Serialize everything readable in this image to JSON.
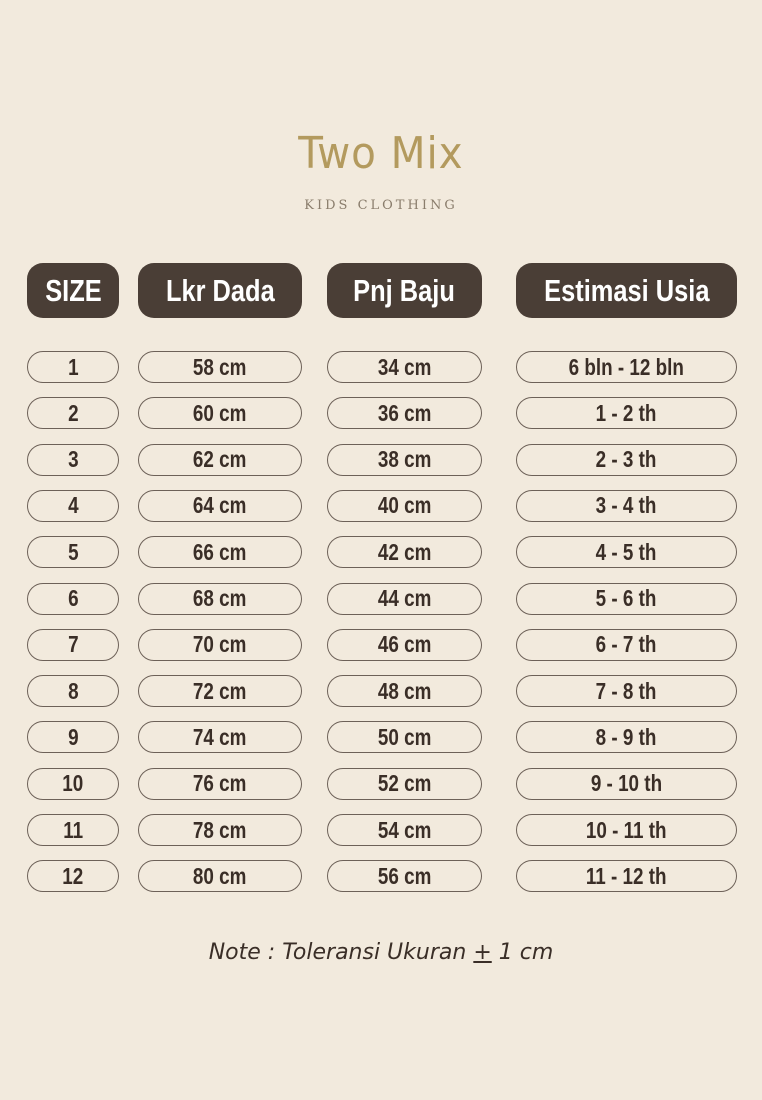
{
  "logo": {
    "brand": "Two Mix",
    "tagline": "KIDS CLOTHING"
  },
  "headers": [
    "SIZE",
    "Lkr Dada",
    "Pnj Baju",
    "Estimasi Usia"
  ],
  "rows": [
    [
      "1",
      "58 cm",
      "34 cm",
      "6 bln - 12 bln"
    ],
    [
      "2",
      "60 cm",
      "36 cm",
      "1 - 2 th"
    ],
    [
      "3",
      "62 cm",
      "38 cm",
      "2 - 3 th"
    ],
    [
      "4",
      "64 cm",
      "40 cm",
      "3 - 4 th"
    ],
    [
      "5",
      "66 cm",
      "42 cm",
      "4 - 5 th"
    ],
    [
      "6",
      "68 cm",
      "44 cm",
      "5 - 6 th"
    ],
    [
      "7",
      "70 cm",
      "46 cm",
      "6 - 7 th"
    ],
    [
      "8",
      "72 cm",
      "48 cm",
      "7 - 8 th"
    ],
    [
      "9",
      "74 cm",
      "50 cm",
      "8 - 9 th"
    ],
    [
      "10",
      "76 cm",
      "52 cm",
      "9 - 10 th"
    ],
    [
      "11",
      "78 cm",
      "54 cm",
      "10 - 11 th"
    ],
    [
      "12",
      "80 cm",
      "56 cm",
      "11 - 12 th"
    ]
  ],
  "note": {
    "prefix": "Note : Toleransi Ukuran ",
    "symbol": "+",
    "suffix": " 1 cm"
  },
  "colors": {
    "background": "#f2eadd",
    "header": "#4a3e36",
    "logo": "#b39a5e",
    "text": "#3a2e27"
  }
}
